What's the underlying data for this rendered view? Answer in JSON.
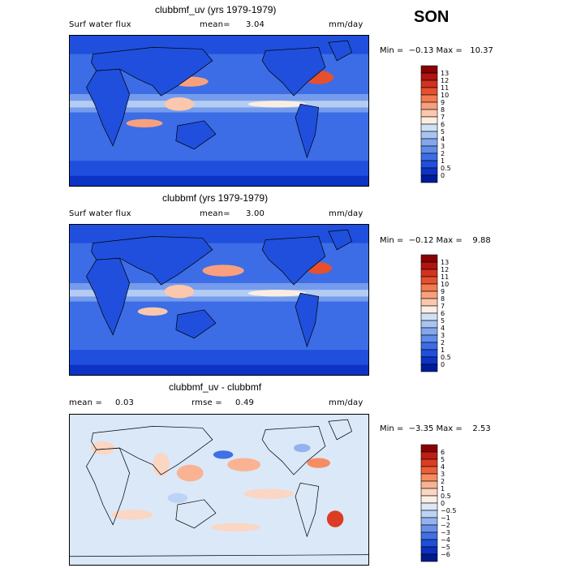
{
  "season": "SON",
  "chart_data": [
    {
      "type": "heatmap",
      "title": "clubbmf_uv (yrs 1979-1979)",
      "field_label": "Surf water flux",
      "mean_label": "mean=",
      "mean_value": "3.04",
      "units": "mm/day",
      "minmax": "Min =  −0.13 Max =   10.37",
      "min": -0.13,
      "max": 10.37,
      "colorbar_labels": [
        "13",
        "12",
        "11",
        "10",
        "9",
        "8",
        "7",
        "6",
        "5",
        "4",
        "3",
        "2",
        "1",
        "0.5",
        "0"
      ],
      "colors": [
        "#8b0000",
        "#b2140f",
        "#d2321e",
        "#e6502d",
        "#f47a50",
        "#f8a07e",
        "#fbc7ad",
        "#fbeee1",
        "#cfe1f7",
        "#a8c5f2",
        "#83a7ee",
        "#5f8bea",
        "#3c6de6",
        "#1f4fdc",
        "#0c33c6",
        "#001b9a"
      ]
    },
    {
      "type": "heatmap",
      "title": "clubbmf (yrs 1979-1979)",
      "field_label": "Surf water flux",
      "mean_label": "mean=",
      "mean_value": "3.00",
      "units": "mm/day",
      "minmax": "Min =  −0.12 Max =    9.88",
      "min": -0.12,
      "max": 9.88,
      "colorbar_labels": [
        "13",
        "12",
        "11",
        "10",
        "9",
        "8",
        "7",
        "6",
        "5",
        "4",
        "3",
        "2",
        "1",
        "0.5",
        "0"
      ],
      "colors": [
        "#8b0000",
        "#b2140f",
        "#d2321e",
        "#e6502d",
        "#f47a50",
        "#f8a07e",
        "#fbc7ad",
        "#fbeee1",
        "#cfe1f7",
        "#a8c5f2",
        "#83a7ee",
        "#5f8bea",
        "#3c6de6",
        "#1f4fdc",
        "#0c33c6",
        "#001b9a"
      ]
    },
    {
      "type": "heatmap",
      "title": "clubbmf_uv - clubbmf",
      "mean_label": "mean =",
      "mean_value": "0.03",
      "rmse_label": "rmse =",
      "rmse_value": "0.49",
      "units": "mm/day",
      "minmax": "Min =  −3.35 Max =    2.53",
      "min": -3.35,
      "max": 2.53,
      "colorbar_labels": [
        "6",
        "5",
        "4",
        "3",
        "2",
        "1",
        "0.5",
        "0",
        "−0.5",
        "−1",
        "−2",
        "−3",
        "−4",
        "−5",
        "−6"
      ],
      "colors": [
        "#8b0000",
        "#c01e14",
        "#dc3c23",
        "#ee5f37",
        "#f68c62",
        "#f9b393",
        "#fbd6c3",
        "#fdeee4",
        "#dbe8f8",
        "#bcd3f4",
        "#92b3ef",
        "#6890ea",
        "#4170e4",
        "#1f4fd9",
        "#0b2fbf",
        "#001a8c"
      ]
    }
  ]
}
